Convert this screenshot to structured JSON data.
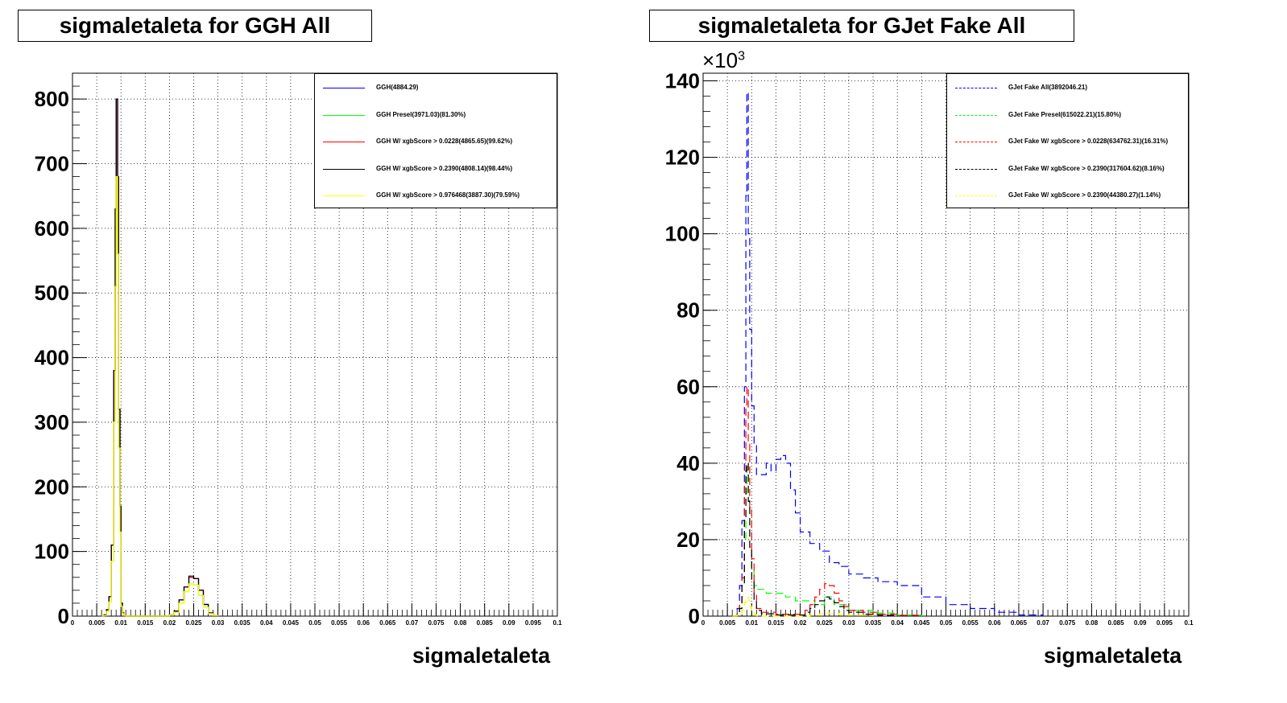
{
  "colors": {
    "blue": "#0000ff",
    "green": "#00ff00",
    "red": "#ff0000",
    "black": "#000000",
    "yellow": "#ffff00"
  },
  "panels": [
    {
      "title": "sigmaletaleta for GGH All",
      "xlabel": "sigmaletaleta",
      "exponent_prefix": "",
      "exponent": "",
      "legend": [
        {
          "label": "GGH(4884.29)",
          "color": "blue",
          "dash": false
        },
        {
          "label": "GGH Presel(3971.03)(81.30%)",
          "color": "green",
          "dash": false
        },
        {
          "label": "GGH W/ xgbScore > 0.0228(4865.65)(99.62%)",
          "color": "red",
          "dash": false
        },
        {
          "label": "GGH W/ xgbScore > 0.2390(4808.14)(98.44%)",
          "color": "black",
          "dash": false
        },
        {
          "label": "GGH W/ xgbScore > 0.976468(3887.30)(79.59%)",
          "color": "yellow",
          "dash": false
        }
      ]
    },
    {
      "title": "sigmaletaleta for GJet Fake All",
      "xlabel": "sigmaletaleta",
      "exponent_prefix": "×10",
      "exponent": "3",
      "legend": [
        {
          "label": "GJet Fake All(3892046.21)",
          "color": "blue",
          "dash": true
        },
        {
          "label": "GJet Fake Presel(615022.21)(15.80%)",
          "color": "green",
          "dash": true
        },
        {
          "label": "GJet Fake W/ xgbScore > 0.0228(634762.31)(16.31%)",
          "color": "red",
          "dash": true
        },
        {
          "label": "GJet Fake W/ xgbScore > 0.2390(317604.62)(8.16%)",
          "color": "black",
          "dash": true
        },
        {
          "label": "GJet Fake W/ xgbScore > 0.2390(44380.27)(1.14%)",
          "color": "yellow",
          "dash": true
        }
      ]
    }
  ],
  "chart_data": [
    {
      "type": "line",
      "title": "sigmaletaleta for GGH All",
      "xlabel": "sigmaletaleta",
      "ylabel": "",
      "xlim": [
        0,
        0.1
      ],
      "ylim": [
        0,
        840
      ],
      "xticks": [
        "0",
        "0.005",
        "0.01",
        "0.015",
        "0.02",
        "0.025",
        "0.03",
        "0.035",
        "0.04",
        "0.045",
        "0.05",
        "0.055",
        "0.06",
        "0.065",
        "0.07",
        "0.075",
        "0.08",
        "0.085",
        "0.09",
        "0.095",
        "0.1"
      ],
      "yticks": [
        "0",
        "100",
        "200",
        "300",
        "400",
        "500",
        "600",
        "700",
        "800"
      ],
      "grid": true,
      "legend_position": "top-right",
      "series": [
        {
          "name": "GGH(4884.29)",
          "color": "blue",
          "dash": false,
          "x": [
            0.006,
            0.0065,
            0.007,
            0.0075,
            0.008,
            0.0085,
            0.0088,
            0.009,
            0.0093,
            0.0095,
            0.0098,
            0.01,
            0.0103,
            0.0106,
            0.011,
            0.012,
            0.019,
            0.02,
            0.021,
            0.022,
            0.023,
            0.024,
            0.025,
            0.026,
            0.027,
            0.028,
            0.029,
            0.03
          ],
          "y": [
            0,
            2,
            10,
            30,
            110,
            380,
            630,
            800,
            680,
            320,
            170,
            20,
            5,
            1,
            0,
            0,
            0,
            2,
            8,
            25,
            45,
            60,
            58,
            40,
            18,
            5,
            1,
            0
          ]
        },
        {
          "name": "GGH Presel(3971.03)(81.30%)",
          "color": "green",
          "dash": false,
          "x": [
            0.006,
            0.0065,
            0.007,
            0.0075,
            0.008,
            0.0085,
            0.0088,
            0.009,
            0.0093,
            0.0095,
            0.0098,
            0.01,
            0.0103,
            0.0106,
            0.011,
            0.012,
            0.019,
            0.02,
            0.021,
            0.022,
            0.023,
            0.024,
            0.025,
            0.026,
            0.027,
            0.028,
            0.029,
            0.03
          ],
          "y": [
            0,
            1,
            7,
            22,
            85,
            300,
            510,
            680,
            560,
            260,
            130,
            15,
            4,
            1,
            0,
            0,
            0,
            2,
            6,
            20,
            38,
            50,
            48,
            32,
            14,
            4,
            1,
            0
          ]
        },
        {
          "name": "GGH W/ xgbScore > 0.0228(4865.65)(99.62%)",
          "color": "red",
          "dash": false,
          "x": [
            0.006,
            0.0065,
            0.007,
            0.0075,
            0.008,
            0.0085,
            0.0088,
            0.009,
            0.0093,
            0.0095,
            0.0098,
            0.01,
            0.0103,
            0.0106,
            0.011,
            0.012,
            0.019,
            0.02,
            0.021,
            0.022,
            0.023,
            0.024,
            0.025,
            0.026,
            0.027,
            0.028,
            0.029,
            0.03
          ],
          "y": [
            0,
            2,
            10,
            30,
            110,
            380,
            630,
            800,
            680,
            320,
            170,
            20,
            5,
            1,
            0,
            0,
            0,
            2,
            8,
            25,
            45,
            60,
            58,
            40,
            18,
            5,
            1,
            0
          ]
        },
        {
          "name": "GGH W/ xgbScore > 0.2390(4808.14)(98.44%)",
          "color": "black",
          "dash": false,
          "x": [
            0.006,
            0.0065,
            0.007,
            0.0075,
            0.008,
            0.0085,
            0.0088,
            0.009,
            0.0093,
            0.0095,
            0.0098,
            0.01,
            0.0103,
            0.0106,
            0.011,
            0.012,
            0.019,
            0.02,
            0.021,
            0.022,
            0.023,
            0.024,
            0.025,
            0.026,
            0.027,
            0.028,
            0.029,
            0.03
          ],
          "y": [
            0,
            2,
            10,
            30,
            110,
            380,
            630,
            800,
            680,
            320,
            170,
            20,
            5,
            1,
            0,
            0,
            0,
            2,
            8,
            25,
            45,
            62,
            58,
            40,
            18,
            5,
            1,
            0
          ]
        },
        {
          "name": "GGH W/ xgbScore > 0.976468(3887.30)(79.59%)",
          "color": "yellow",
          "dash": false,
          "x": [
            0.006,
            0.0065,
            0.007,
            0.0075,
            0.008,
            0.0085,
            0.0088,
            0.009,
            0.0093,
            0.0095,
            0.0098,
            0.01,
            0.0103,
            0.0106,
            0.011,
            0.012,
            0.019,
            0.02,
            0.021,
            0.022,
            0.023,
            0.024,
            0.025,
            0.026,
            0.027,
            0.028,
            0.029,
            0.03
          ],
          "y": [
            0,
            1,
            7,
            22,
            85,
            300,
            510,
            680,
            560,
            260,
            130,
            15,
            4,
            1,
            0,
            0,
            0,
            2,
            6,
            20,
            38,
            50,
            48,
            32,
            14,
            4,
            1,
            0
          ]
        }
      ]
    },
    {
      "type": "line",
      "title": "sigmaletaleta for GJet Fake All",
      "xlabel": "sigmaletaleta",
      "ylabel": "",
      "y_multiplier": "×10^3",
      "xlim": [
        0,
        0.1
      ],
      "ylim": [
        0,
        142
      ],
      "xticks": [
        "0",
        "0.005",
        "0.01",
        "0.015",
        "0.02",
        "0.025",
        "0.03",
        "0.035",
        "0.04",
        "0.045",
        "0.05",
        "0.055",
        "0.06",
        "0.065",
        "0.07",
        "0.075",
        "0.08",
        "0.085",
        "0.09",
        "0.095",
        "0.1"
      ],
      "yticks": [
        "0",
        "20",
        "40",
        "60",
        "80",
        "100",
        "120",
        "140"
      ],
      "grid": true,
      "legend_position": "top-right",
      "series": [
        {
          "name": "GJet Fake All(3892046.21)",
          "color": "blue",
          "dash": true,
          "x": [
            0.006,
            0.007,
            0.0075,
            0.008,
            0.0085,
            0.0088,
            0.009,
            0.0093,
            0.0096,
            0.01,
            0.0105,
            0.011,
            0.012,
            0.013,
            0.014,
            0.015,
            0.016,
            0.017,
            0.018,
            0.019,
            0.02,
            0.022,
            0.024,
            0.026,
            0.028,
            0.03,
            0.033,
            0.036,
            0.04,
            0.045,
            0.05,
            0.055,
            0.06,
            0.065,
            0.07
          ],
          "y": [
            0,
            2,
            8,
            25,
            60,
            110,
            137,
            100,
            75,
            55,
            45,
            37,
            37,
            40,
            38,
            41,
            42,
            40,
            33,
            27,
            22,
            19,
            17,
            14,
            13,
            11,
            10,
            9,
            8,
            5,
            3,
            2,
            1,
            0.3,
            0
          ]
        },
        {
          "name": "GJet Fake Presel(615022.21)(15.80%)",
          "color": "green",
          "dash": true,
          "x": [
            0.006,
            0.007,
            0.0075,
            0.008,
            0.0085,
            0.0088,
            0.009,
            0.0093,
            0.0096,
            0.01,
            0.0105,
            0.011,
            0.013,
            0.015,
            0.017,
            0.019,
            0.021,
            0.023,
            0.025,
            0.027,
            0.03,
            0.035,
            0.04,
            0.045
          ],
          "y": [
            0,
            1,
            3,
            8,
            20,
            32,
            40,
            30,
            18,
            12,
            8,
            7,
            6,
            6,
            5,
            4,
            4,
            3,
            5,
            3,
            1.5,
            0.8,
            0.3,
            0
          ]
        },
        {
          "name": "GJet Fake W/ xgbScore > 0.0228(634762.31)(16.31%)",
          "color": "red",
          "dash": true,
          "x": [
            0.006,
            0.007,
            0.0075,
            0.008,
            0.0085,
            0.0088,
            0.009,
            0.0093,
            0.0096,
            0.01,
            0.0105,
            0.011,
            0.012,
            0.015,
            0.02,
            0.021,
            0.022,
            0.023,
            0.024,
            0.025,
            0.026,
            0.027,
            0.028,
            0.029,
            0.03,
            0.033,
            0.036,
            0.04,
            0.045
          ],
          "y": [
            0,
            1,
            3,
            10,
            35,
            55,
            60,
            45,
            28,
            15,
            6,
            2,
            1,
            0.5,
            0.5,
            1.5,
            3,
            5,
            7,
            8.5,
            8,
            6,
            4,
            2.5,
            1.5,
            1,
            0.5,
            0.2,
            0
          ]
        },
        {
          "name": "GJet Fake W/ xgbScore > 0.2390(317604.62)(8.16%)",
          "color": "black",
          "dash": true,
          "x": [
            0.006,
            0.007,
            0.0075,
            0.008,
            0.0085,
            0.0088,
            0.009,
            0.0093,
            0.0096,
            0.01,
            0.0105,
            0.011,
            0.012,
            0.015,
            0.02,
            0.021,
            0.022,
            0.023,
            0.024,
            0.025,
            0.026,
            0.027,
            0.028,
            0.029,
            0.03,
            0.033,
            0.036,
            0.04
          ],
          "y": [
            0,
            1,
            2,
            8,
            25,
            38,
            40,
            30,
            18,
            9,
            4,
            1.5,
            0.6,
            0.3,
            0.3,
            1,
            2,
            3,
            4,
            5,
            4.5,
            3.5,
            2.5,
            1.5,
            1,
            0.5,
            0.2,
            0
          ]
        },
        {
          "name": "GJet Fake W/ xgbScore > 0.2390(44380.27)(1.14%)",
          "color": "yellow",
          "dash": true,
          "x": [
            0.006,
            0.007,
            0.008,
            0.0085,
            0.0088,
            0.009,
            0.0093,
            0.0096,
            0.01,
            0.0105,
            0.011,
            0.012,
            0.02,
            0.022,
            0.024,
            0.025,
            0.026,
            0.028,
            0.03,
            0.035
          ],
          "y": [
            0,
            0.3,
            1.5,
            3.5,
            4.5,
            5,
            4,
            2.5,
            1.2,
            0.4,
            0.1,
            0,
            0,
            0.2,
            0.6,
            0.8,
            0.7,
            0.4,
            0.2,
            0
          ]
        }
      ]
    }
  ]
}
